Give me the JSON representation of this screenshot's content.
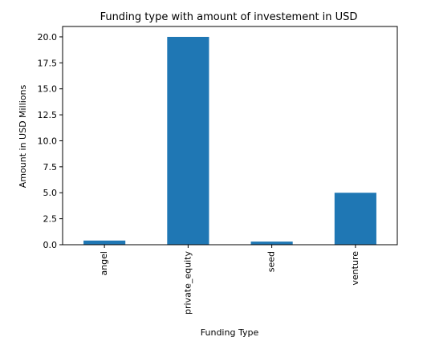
{
  "chart_data": {
    "type": "bar",
    "title": "Funding type with amount of investement in USD",
    "xlabel": "Funding Type",
    "ylabel": "Amount in USD Millions",
    "categories": [
      "angel",
      "private_equity",
      "seed",
      "venture"
    ],
    "values": [
      0.4,
      20.0,
      0.3,
      5.0
    ],
    "ylim": [
      0,
      21
    ],
    "yticks": [
      "0.0",
      "2.5",
      "5.0",
      "7.5",
      "10.0",
      "12.5",
      "15.0",
      "17.5",
      "20.0"
    ],
    "grid": false,
    "legend": "none",
    "bar_color": "#1f77b4"
  }
}
